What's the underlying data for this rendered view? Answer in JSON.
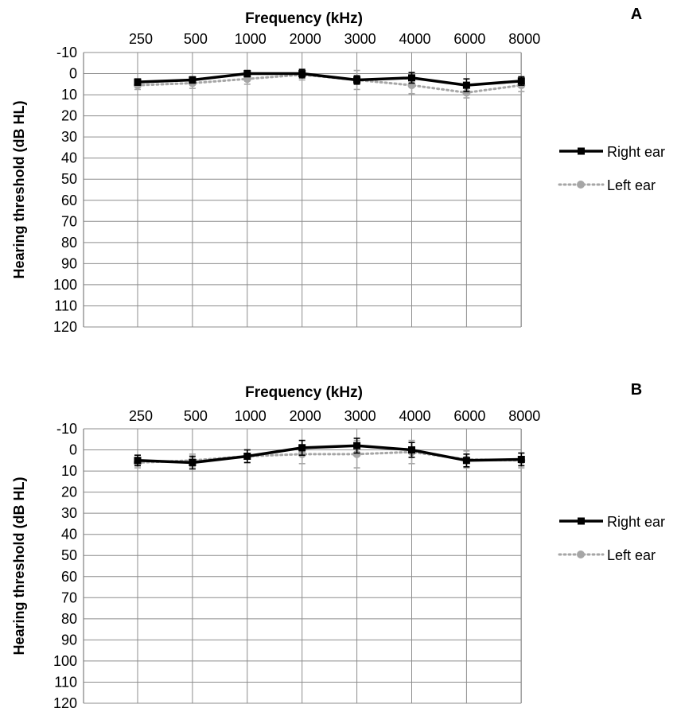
{
  "chart_data": [
    {
      "type": "line",
      "panel": "A",
      "xlabel": "Frequency (kHz)",
      "ylabel": "Hearing threshold (dB HL)",
      "categories": [
        "250",
        "500",
        "1000",
        "2000",
        "3000",
        "4000",
        "6000",
        "8000"
      ],
      "y_ticks": [
        "-10",
        "0",
        "10",
        "20",
        "30",
        "40",
        "50",
        "60",
        "70",
        "80",
        "90",
        "100",
        "110",
        "120"
      ],
      "ylim": [
        -10,
        120
      ],
      "y_inverted": true,
      "grid": true,
      "legend_position": "right",
      "series": [
        {
          "name": "Right ear",
          "values": [
            4,
            3,
            0,
            0,
            3,
            2,
            5.5,
            3.5
          ],
          "error": [
            1.5,
            1.5,
            1.5,
            2,
            2,
            2.5,
            3,
            2
          ],
          "color": "#000000",
          "marker": "square",
          "dash": "solid"
        },
        {
          "name": "Left ear",
          "values": [
            5.5,
            4.5,
            2.5,
            0.5,
            3,
            5.5,
            9,
            5.5
          ],
          "error": [
            2,
            2.5,
            2.5,
            2.5,
            4.5,
            4,
            2.5,
            3
          ],
          "color": "#a6a6a6",
          "marker": "circle",
          "dash": "dotted"
        }
      ]
    },
    {
      "type": "line",
      "panel": "B",
      "xlabel": "Frequency (kHz)",
      "ylabel": "Hearing threshold (dB HL)",
      "categories": [
        "250",
        "500",
        "1000",
        "2000",
        "3000",
        "4000",
        "6000",
        "8000"
      ],
      "y_ticks": [
        "-10",
        "0",
        "10",
        "20",
        "30",
        "40",
        "50",
        "60",
        "70",
        "80",
        "90",
        "100",
        "110",
        "120"
      ],
      "ylim": [
        -10,
        120
      ],
      "y_inverted": true,
      "grid": true,
      "legend_position": "right",
      "series": [
        {
          "name": "Right ear",
          "values": [
            5,
            6,
            3,
            -1,
            -2,
            0,
            5,
            4.5
          ],
          "error": [
            2.5,
            3,
            3,
            3.5,
            3.5,
            3.5,
            3,
            3
          ],
          "color": "#000000",
          "marker": "square",
          "dash": "solid"
        },
        {
          "name": "Left ear",
          "values": [
            6,
            5,
            3,
            2,
            2,
            1,
            4.5,
            5
          ],
          "error": [
            2.5,
            3,
            3,
            4.5,
            6.5,
            5.5,
            4,
            3.5
          ],
          "color": "#a6a6a6",
          "marker": "circle",
          "dash": "dotted"
        }
      ]
    }
  ]
}
